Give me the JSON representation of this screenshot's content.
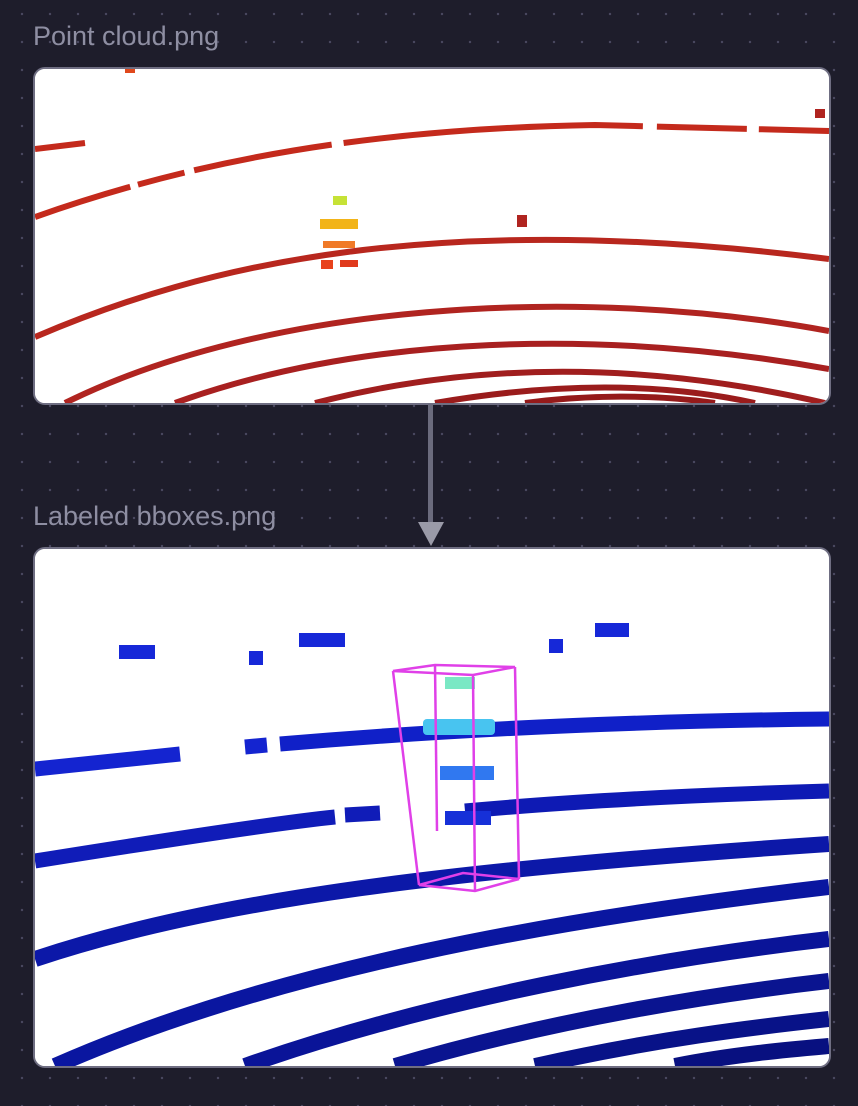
{
  "canvas": {
    "nodes": [
      {
        "label": "Point cloud.png",
        "image": "lidar-point-cloud-image"
      },
      {
        "label": "Labeled bboxes.png",
        "image": "lidar-labeled-bbox-image"
      }
    ],
    "edge": {
      "from": "Point cloud.png",
      "to": "Labeled bboxes.png"
    }
  },
  "colors": {
    "canvas_background": "#1e1d2b",
    "grid_dot": "#4a4960",
    "label_text": "#8e8ea2",
    "card_border": "#6f6e82",
    "connector": "#6b6b7d",
    "point_cloud_rings": "#c0291c",
    "point_cloud_object": "#f0a020",
    "bbox_rings": "#1822c8",
    "bbox_object": "#42c8f0",
    "bbox_outline": "#e040e8"
  }
}
